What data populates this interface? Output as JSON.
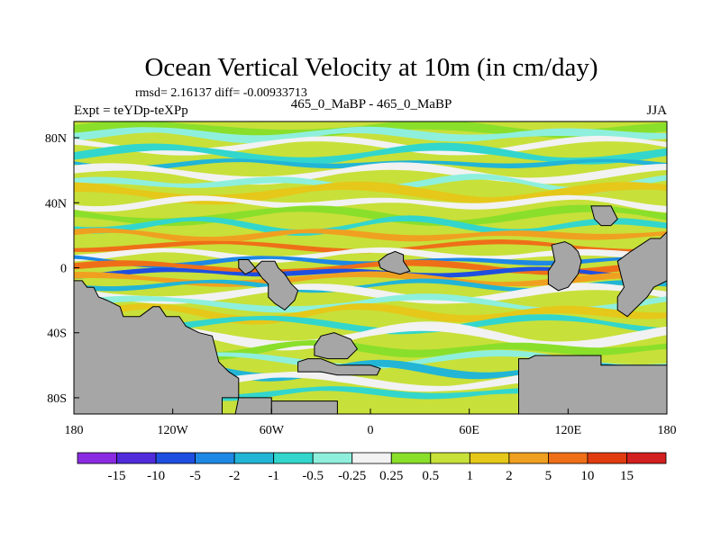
{
  "chart_data": {
    "type": "heatmap",
    "title": "Ocean Vertical Velocity at 10m (in cm/day)",
    "stats": "rmsd= 2.16137 diff= -0.00933713",
    "left_label": "Expt = teYDp-teXPp",
    "center_label": "465_0_MaBP - 465_0_MaBP",
    "right_label": "JJA",
    "x_ticks": [
      "180",
      "120W",
      "60W",
      "0",
      "60E",
      "120E",
      "180"
    ],
    "x_tick_values": [
      -180,
      -120,
      -60,
      0,
      60,
      120,
      180
    ],
    "y_ticks": [
      "80N",
      "40N",
      "0",
      "40S",
      "80S"
    ],
    "y_tick_values": [
      80,
      40,
      0,
      -40,
      -80
    ],
    "xlim": [
      -180,
      180
    ],
    "ylim": [
      -90,
      90
    ],
    "colorbar_labels": [
      "-15",
      "-10",
      "-5",
      "-2",
      "-1",
      "-0.5",
      "-0.25",
      "0.25",
      "0.5",
      "1",
      "2",
      "5",
      "10",
      "15"
    ],
    "colorbar_colors": [
      "#8a2be2",
      "#4f2bdc",
      "#1f4fe0",
      "#1e88e5",
      "#22b5d6",
      "#33d6cc",
      "#8ef0dc",
      "#f2f2f2",
      "#8adf2b",
      "#c8e03a",
      "#e5c81a",
      "#f0a020",
      "#ef6f18",
      "#e03c10",
      "#d21f1f"
    ],
    "land_color": "#a6a6a6"
  }
}
